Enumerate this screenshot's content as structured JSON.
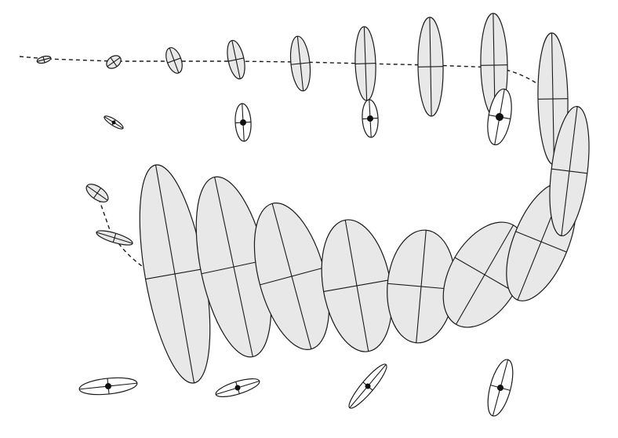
{
  "colors": {
    "ellipse_fill": "#e8e8e8",
    "marker_fill": "#ffffff",
    "stroke": "#1a1a1a",
    "dot": "#111111",
    "background": "#ffffff"
  }
}
